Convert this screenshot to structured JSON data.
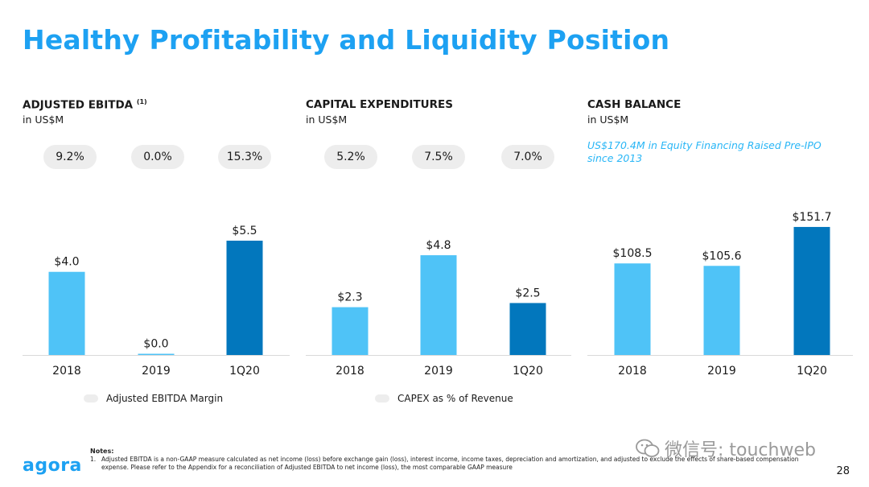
{
  "slide": {
    "title": "Healthy Profitability and Liquidity Position",
    "page_number": "28",
    "logo_text": "agora",
    "watermark": "微信号: touchweb"
  },
  "colors": {
    "title": "#1da1f2",
    "bar_light": "#4fc3f7",
    "bar_dark": "#0277bd",
    "pill": "#ededed",
    "annotation": "#29b6f6"
  },
  "panels": [
    {
      "title": "ADJUSTED EBITDA",
      "superscript": "(1)",
      "subtitle": "in US$M",
      "margins": [
        "9.2%",
        "0.0%",
        "15.3%"
      ]
    },
    {
      "title": "CAPITAL EXPENDITURES",
      "superscript": "",
      "subtitle": "in US$M",
      "margins": [
        "5.2%",
        "7.5%",
        "7.0%"
      ]
    },
    {
      "title": "CASH BALANCE",
      "superscript": "",
      "subtitle": "in US$M",
      "annotation": "US$170.4M in Equity Financing Raised Pre-IPO since 2013"
    }
  ],
  "legends": {
    "ebitda": "Adjusted EBITDA Margin",
    "capex": "CAPEX as % of Revenue"
  },
  "notes": {
    "heading": "Notes:",
    "items": [
      {
        "num": "1.",
        "text": "Adjusted EBITDA is a non-GAAP measure calculated as net income (loss) before exchange gain (loss), interest income, income taxes, depreciation and amortization, and adjusted to exclude the effects of share-based compensation expense. Please refer to the Appendix for a reconciliation of Adjusted EBITDA to net income (loss), the most comparable GAAP measure"
      }
    ]
  },
  "chart_data": [
    {
      "type": "bar",
      "title": "ADJUSTED EBITDA",
      "ylabel": "in US$M",
      "categories": [
        "2018",
        "2019",
        "1Q20"
      ],
      "values": [
        4.0,
        0.0,
        5.5
      ],
      "labels": [
        "$4.0",
        "$0.0",
        "$5.5"
      ],
      "ylim": [
        0,
        6.7
      ],
      "highlight_index": 2
    },
    {
      "type": "bar",
      "title": "CAPITAL EXPENDITURES",
      "ylabel": "in US$M",
      "categories": [
        "2018",
        "2019",
        "1Q20"
      ],
      "values": [
        2.3,
        4.8,
        2.5
      ],
      "labels": [
        "$2.3",
        "$4.8",
        "$2.5"
      ],
      "ylim": [
        0,
        6.7
      ],
      "highlight_index": 2
    },
    {
      "type": "bar",
      "title": "CASH BALANCE",
      "ylabel": "in US$M",
      "categories": [
        "2018",
        "2019",
        "1Q20"
      ],
      "values": [
        108.5,
        105.6,
        151.7
      ],
      "labels": [
        "$108.5",
        "$105.6",
        "$151.7"
      ],
      "ylim": [
        0,
        165
      ],
      "highlight_index": 2
    }
  ]
}
